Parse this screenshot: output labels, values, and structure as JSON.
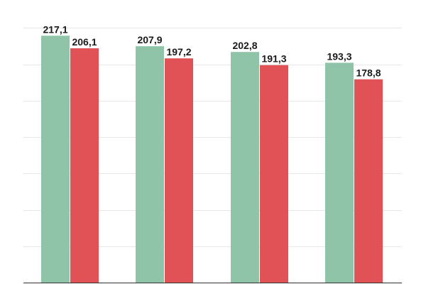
{
  "chart_data": {
    "type": "bar",
    "title": "",
    "xlabel": "",
    "ylabel": "",
    "ylim": [
      0,
      240
    ],
    "grid": true,
    "legend": "none",
    "categories": [
      "",
      "",
      "",
      ""
    ],
    "series": [
      {
        "color": "#8fc4a8",
        "values": [
          217.1,
          207.9,
          202.8,
          193.3
        ],
        "labels": [
          "217,1",
          "207,9",
          "202,8",
          "193,3"
        ]
      },
      {
        "color": "#e05255",
        "values": [
          206.1,
          197.2,
          191.3,
          178.8
        ],
        "labels": [
          "206,1",
          "197,2",
          "191,3",
          "178,8"
        ]
      }
    ]
  }
}
